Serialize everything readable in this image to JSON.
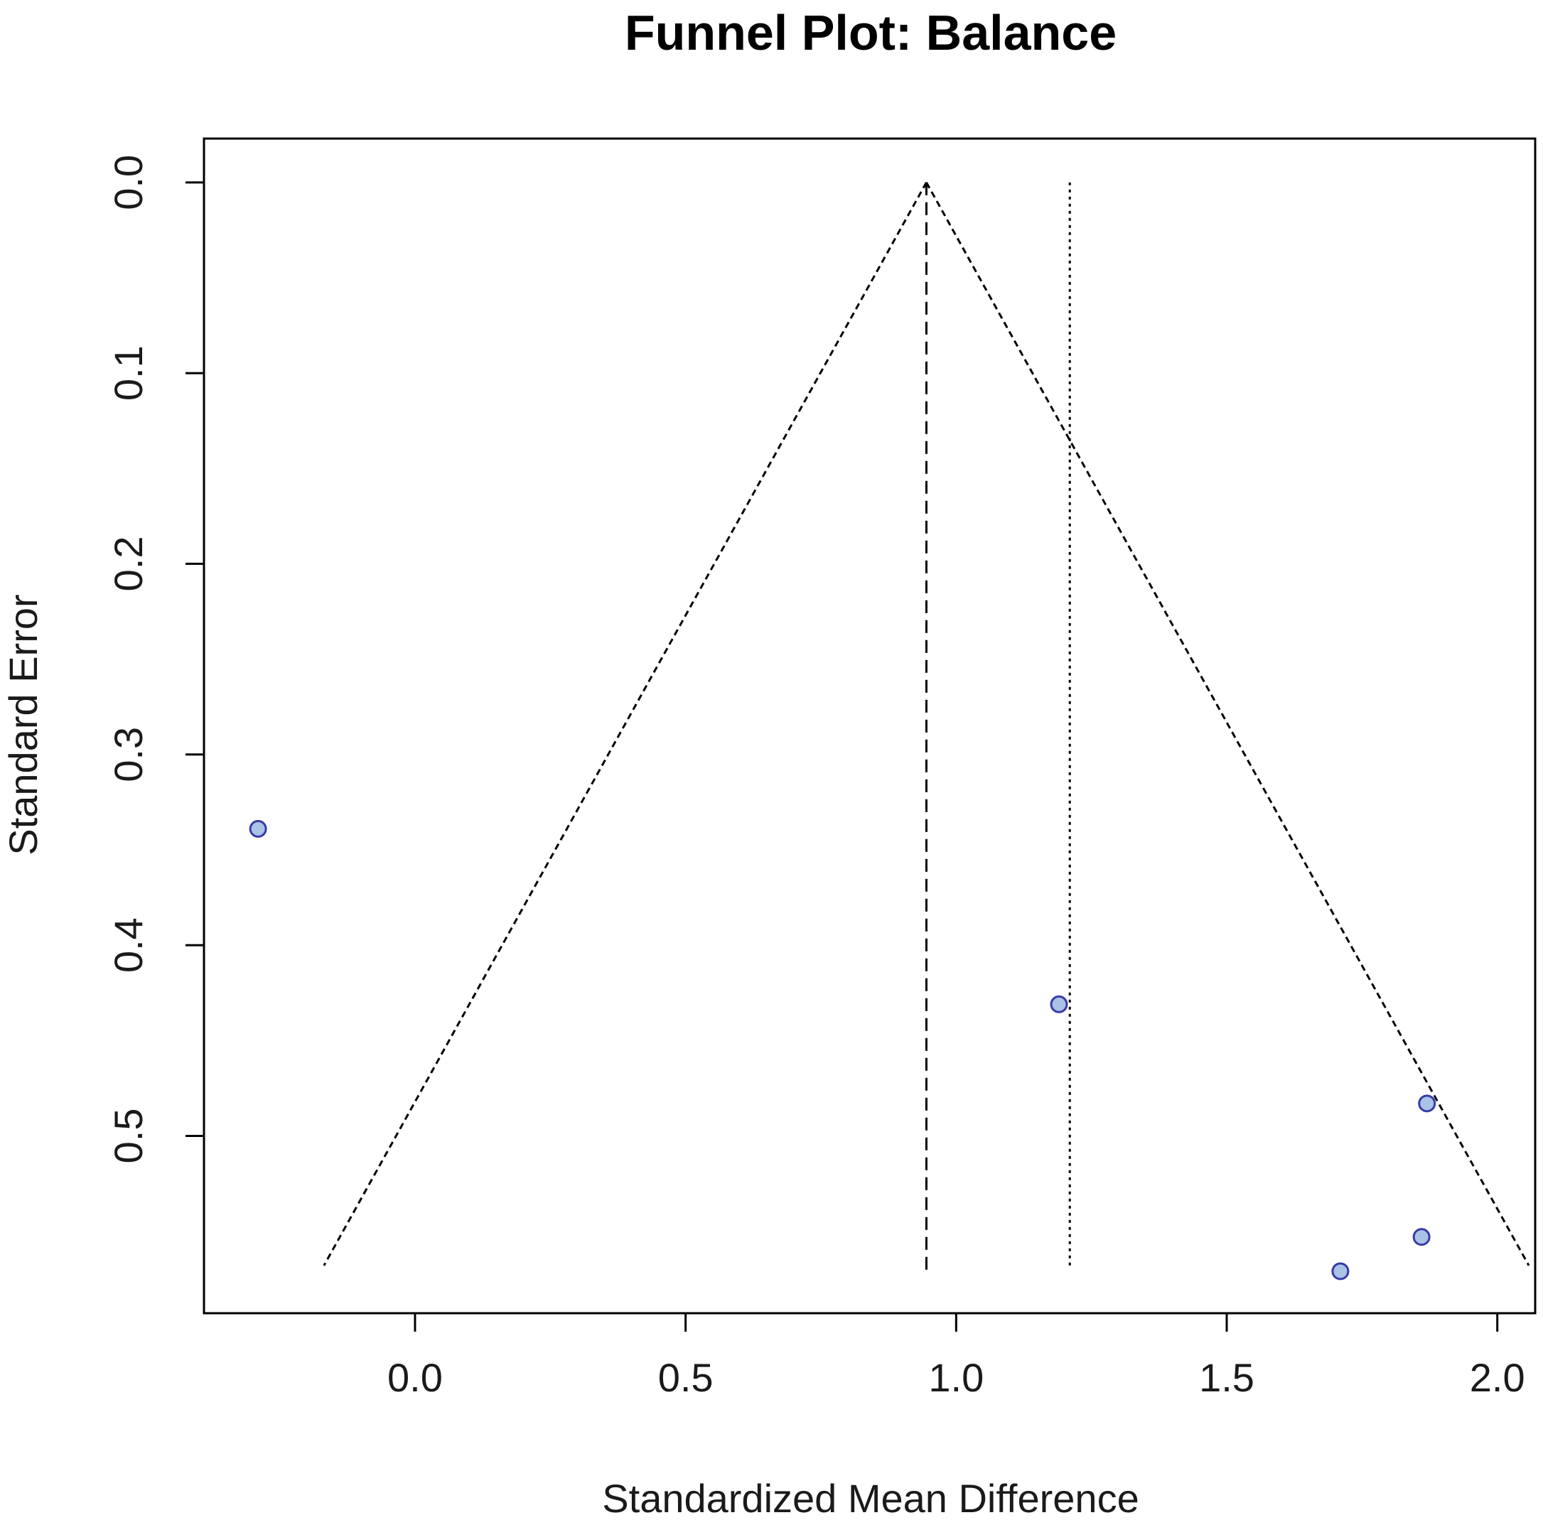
{
  "chart_data": {
    "type": "scatter",
    "title": "Funnel Plot: Balance",
    "xlabel": "Standardized Mean Difference",
    "ylabel": "Standard Error",
    "xlim": [
      -0.39,
      2.07
    ],
    "ylim": [
      0.593,
      -0.023
    ],
    "y_axis_reversed": true,
    "grid": false,
    "x_ticks": [
      "0.0",
      "0.5",
      "1.0",
      "1.5",
      "2.0"
    ],
    "x_tick_values": [
      0.0,
      0.5,
      1.0,
      1.5,
      2.0
    ],
    "y_ticks": [
      "0.0",
      "0.1",
      "0.2",
      "0.3",
      "0.4",
      "0.5"
    ],
    "y_tick_values": [
      0.0,
      0.1,
      0.2,
      0.3,
      0.4,
      0.5
    ],
    "points": [
      {
        "x": -0.29,
        "y": 0.339
      },
      {
        "x": 1.19,
        "y": 0.431
      },
      {
        "x": 1.87,
        "y": 0.483
      },
      {
        "x": 1.86,
        "y": 0.553
      },
      {
        "x": 1.71,
        "y": 0.571
      }
    ],
    "pooled_estimate": 0.945,
    "reference_line_x": 1.21,
    "funnel_se_max": 0.568,
    "funnel_z": 1.96,
    "colors": {
      "point_fill": "#a8c3e6",
      "point_edge": "#3a3aa8",
      "lines": "#000000"
    }
  }
}
